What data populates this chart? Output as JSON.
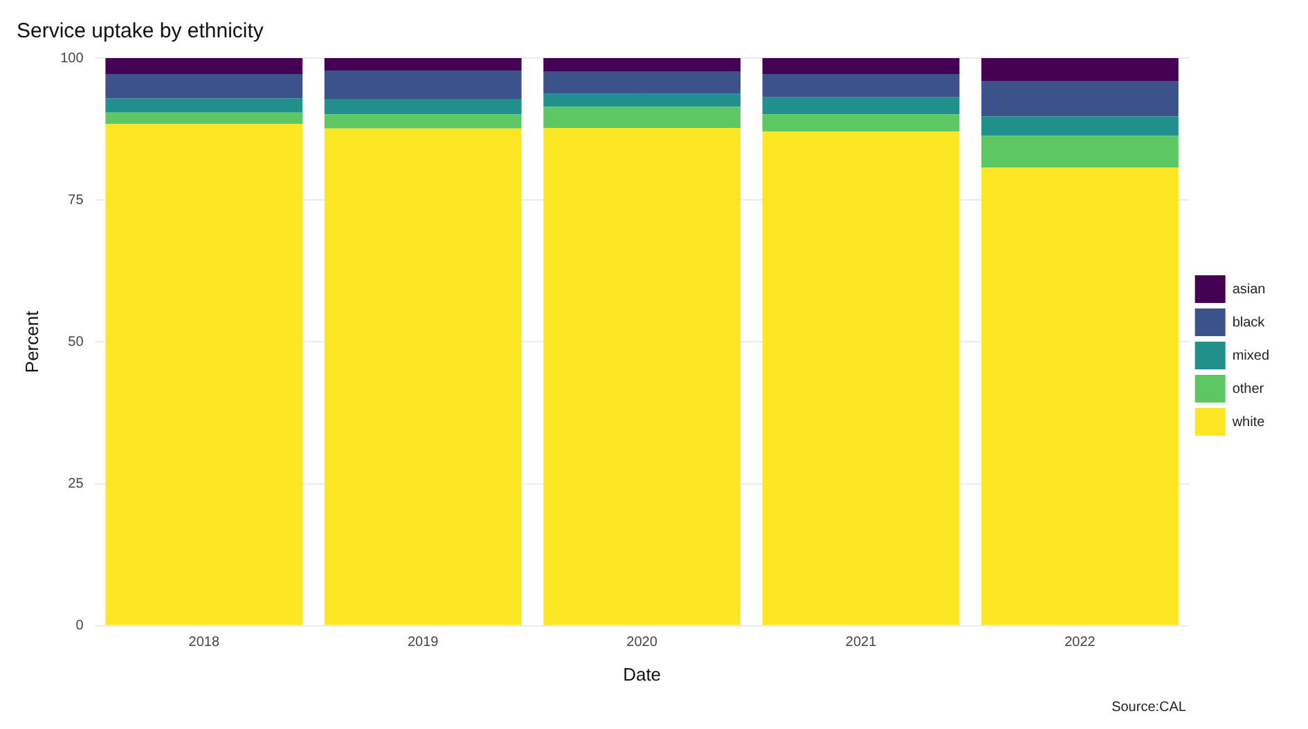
{
  "chart_data": {
    "type": "bar",
    "title": "Service uptake by ethnicity",
    "xlabel": "Date",
    "ylabel": "Percent",
    "categories": [
      "2018",
      "2019",
      "2020",
      "2021",
      "2022"
    ],
    "stacked": true,
    "ylim": [
      0,
      100
    ],
    "yticks": [
      0,
      25,
      50,
      75,
      100
    ],
    "grid": true,
    "legend": "right",
    "annotations": [
      "Source:CAL"
    ],
    "series": [
      {
        "name": "white",
        "color": "#fde725",
        "values": [
          88.4,
          87.6,
          87.7,
          87.1,
          80.7
        ]
      },
      {
        "name": "other",
        "color": "#5dc863",
        "values": [
          2.0,
          2.5,
          3.7,
          3.0,
          5.6
        ]
      },
      {
        "name": "mixed",
        "color": "#21908c",
        "values": [
          2.5,
          2.7,
          2.3,
          3.0,
          3.4
        ]
      },
      {
        "name": "black",
        "color": "#3b528b",
        "values": [
          4.3,
          5.0,
          4.0,
          4.1,
          6.2
        ]
      },
      {
        "name": "asian",
        "color": "#440154",
        "values": [
          2.8,
          2.2,
          2.3,
          2.8,
          4.1
        ]
      }
    ]
  }
}
